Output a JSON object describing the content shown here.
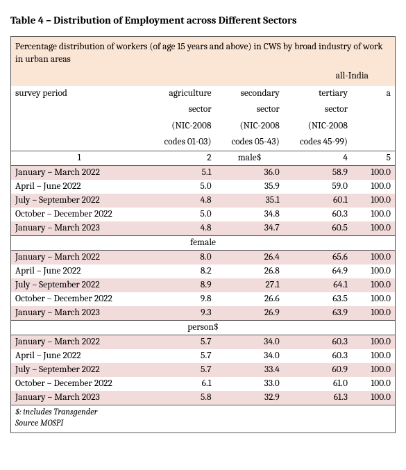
{
  "title": "Table 4 – Distribution of Employment across Different Sectors",
  "header_text": "Percentage distribution of workers (of age 15 years and above) in CWS by broad industry of work in urban areas",
  "all_india": "all-India",
  "col_headers": {
    "survey": "survey period",
    "agri1": "agriculture",
    "agri2": "sector",
    "agri3": "(NIC-2008",
    "agri4": "codes 01-03)",
    "sec1": "secondary",
    "sec2": "sector",
    "sec3": "(NIC-2008",
    "sec4": "codes 05-43)",
    "ter1": "tertiary",
    "ter2": "sector",
    "ter3": "(NIC-2008",
    "ter4": "codes 45-99)",
    "all": "a"
  },
  "colnums": {
    "c1": "1",
    "c2": "2",
    "c4": "4",
    "c5": "5"
  },
  "sections": {
    "male": "male$",
    "female": "female",
    "person": "person$"
  },
  "periods": [
    "January – March 2022",
    "April – June 2022",
    "July – September 2022",
    "October – December 2022",
    "January – March 2023"
  ],
  "male": [
    [
      "5.1",
      "36.0",
      "58.9",
      "100.0"
    ],
    [
      "5.0",
      "35.9",
      "59.0",
      "100.0"
    ],
    [
      "4.8",
      "35.1",
      "60.1",
      "100.0"
    ],
    [
      "5.0",
      "34.8",
      "60.3",
      "100.0"
    ],
    [
      "4.8",
      "34.7",
      "60.5",
      "100.0"
    ]
  ],
  "female": [
    [
      "8.0",
      "26.4",
      "65.6",
      "100.0"
    ],
    [
      "8.2",
      "26.8",
      "64.9",
      "100.0"
    ],
    [
      "8.9",
      "27.1",
      "64.1",
      "100.0"
    ],
    [
      "9.8",
      "26.6",
      "63.5",
      "100.0"
    ],
    [
      "9.3",
      "26.9",
      "63.9",
      "100.0"
    ]
  ],
  "person": [
    [
      "5.7",
      "34.0",
      "60.3",
      "100.0"
    ],
    [
      "5.7",
      "34.0",
      "60.3",
      "100.0"
    ],
    [
      "5.7",
      "33.4",
      "60.9",
      "100.0"
    ],
    [
      "6.1",
      "33.0",
      "61.0",
      "100.0"
    ],
    [
      "5.8",
      "32.9",
      "61.3",
      "100.0"
    ]
  ],
  "footnote1": "$: includes Transgender",
  "footnote2": "Source MOSPI",
  "colors": {
    "header_bg": "#fbe5d5",
    "row_shade": "#f2dcdb",
    "border": "#555555",
    "bg": "#ffffff"
  }
}
